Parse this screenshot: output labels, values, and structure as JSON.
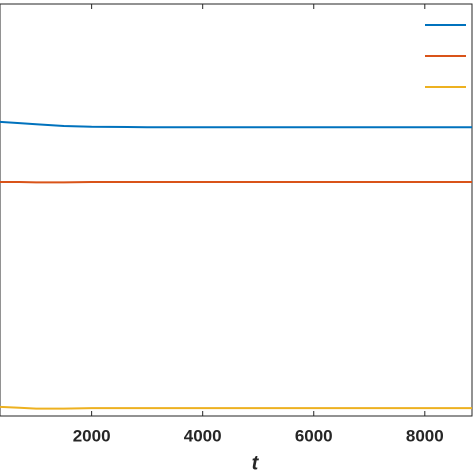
{
  "chart_data": {
    "type": "line",
    "x": [
      350,
      700,
      1000,
      1500,
      2000,
      3000,
      4000,
      5000,
      6000,
      7000,
      8000,
      8850
    ],
    "series": [
      {
        "color": "#0072bd",
        "values": [
          0.714,
          0.711,
          0.708,
          0.704,
          0.702,
          0.701,
          0.701,
          0.701,
          0.701,
          0.701,
          0.701,
          0.701
        ]
      },
      {
        "color": "#d95319",
        "values": [
          0.568,
          0.568,
          0.567,
          0.567,
          0.568,
          0.568,
          0.568,
          0.568,
          0.568,
          0.568,
          0.568,
          0.568
        ]
      },
      {
        "color": "#edb120",
        "values": [
          0.022,
          0.02,
          0.018,
          0.018,
          0.019,
          0.019,
          0.019,
          0.019,
          0.019,
          0.019,
          0.019,
          0.019
        ]
      }
    ],
    "xlabel": "t",
    "xlim": [
      350,
      8850
    ],
    "xticks": [
      2000,
      4000,
      6000,
      8000
    ],
    "ylim": [
      0,
      1
    ],
    "legend": "northeast"
  }
}
